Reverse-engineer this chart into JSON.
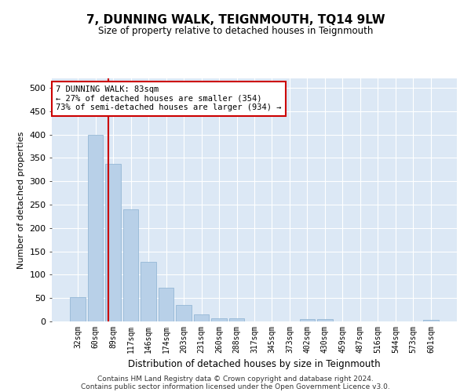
{
  "title": "7, DUNNING WALK, TEIGNMOUTH, TQ14 9LW",
  "subtitle": "Size of property relative to detached houses in Teignmouth",
  "xlabel": "Distribution of detached houses by size in Teignmouth",
  "ylabel": "Number of detached properties",
  "categories": [
    "32sqm",
    "60sqm",
    "89sqm",
    "117sqm",
    "146sqm",
    "174sqm",
    "203sqm",
    "231sqm",
    "260sqm",
    "288sqm",
    "317sqm",
    "345sqm",
    "373sqm",
    "402sqm",
    "430sqm",
    "459sqm",
    "487sqm",
    "516sqm",
    "544sqm",
    "573sqm",
    "601sqm"
  ],
  "values": [
    52,
    400,
    337,
    240,
    128,
    72,
    35,
    15,
    7,
    6,
    0,
    0,
    0,
    5,
    5,
    0,
    0,
    0,
    0,
    0,
    3
  ],
  "bar_color": "#b8d0e8",
  "bar_edge_color": "#8ab0d0",
  "background_color": "#dce8f5",
  "grid_color": "#ffffff",
  "annotation_box_facecolor": "#ffffff",
  "annotation_border_color": "#cc0000",
  "red_line_x": 1.72,
  "annotation_text_line1": "7 DUNNING WALK: 83sqm",
  "annotation_text_line2": "← 27% of detached houses are smaller (354)",
  "annotation_text_line3": "73% of semi-detached houses are larger (934) →",
  "footnote1": "Contains HM Land Registry data © Crown copyright and database right 2024.",
  "footnote2": "Contains public sector information licensed under the Open Government Licence v3.0.",
  "ylim": [
    0,
    520
  ],
  "yticks": [
    0,
    50,
    100,
    150,
    200,
    250,
    300,
    350,
    400,
    450,
    500
  ]
}
